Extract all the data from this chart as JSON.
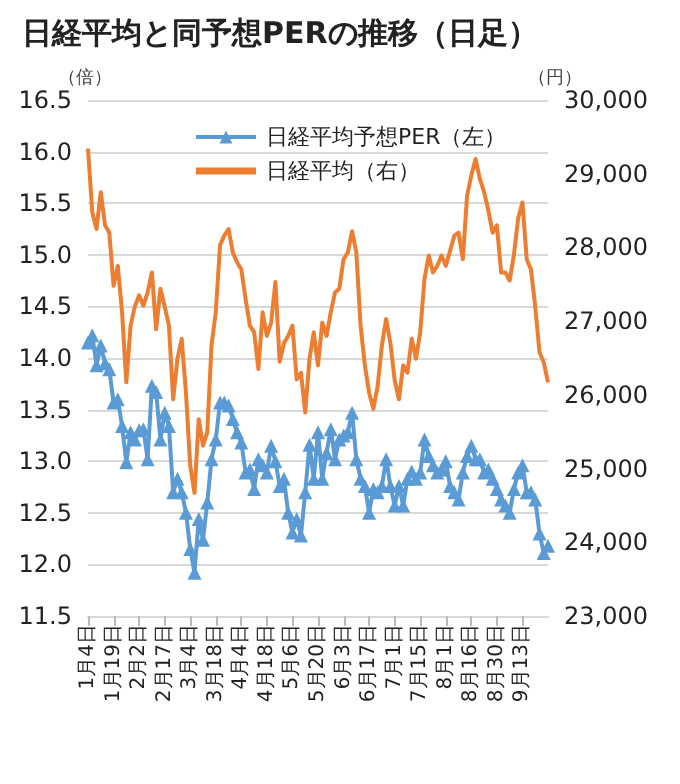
{
  "chart_data": {
    "type": "line",
    "title": "日経平均と同予想PERの推移（日足）",
    "ylabel": "（倍）",
    "y2label": "（円）",
    "categories": [
      "1月4日",
      null,
      null,
      null,
      null,
      null,
      "1月19日",
      null,
      null,
      null,
      null,
      null,
      "2月2日",
      null,
      null,
      null,
      null,
      null,
      "2月17日",
      null,
      null,
      null,
      null,
      null,
      "3月4日",
      null,
      null,
      null,
      null,
      null,
      "3月18日",
      null,
      null,
      null,
      null,
      null,
      "4月4日",
      null,
      null,
      null,
      null,
      null,
      "4月18日",
      null,
      null,
      null,
      null,
      null,
      "5月6日",
      null,
      null,
      null,
      null,
      null,
      "5月20日",
      null,
      null,
      null,
      null,
      null,
      "6月3日",
      null,
      null,
      null,
      null,
      null,
      "6月17日",
      null,
      null,
      null,
      null,
      null,
      "7月1日",
      null,
      null,
      null,
      null,
      null,
      "7月15日",
      null,
      null,
      null,
      null,
      null,
      "8月1日",
      null,
      null,
      null,
      null,
      null,
      "8月16日",
      null,
      null,
      null,
      null,
      null,
      "8月30日",
      null,
      null,
      null,
      null,
      null,
      "9月13日",
      null,
      null,
      null,
      null,
      null,
      null
    ],
    "series": [
      {
        "name": "日経平均予想PER（左）",
        "color": "#5b9bd5",
        "marker": "triangle",
        "values": [
          14.15,
          14.22,
          13.93,
          14.12,
          13.95,
          13.89,
          13.57,
          13.6,
          13.34,
          12.99,
          13.28,
          13.21,
          13.3,
          13.31,
          13.02,
          13.73,
          13.67,
          13.21,
          13.47,
          13.34,
          12.7,
          12.83,
          12.7,
          12.5,
          12.15,
          11.92,
          12.44,
          12.24,
          12.6,
          13.02,
          13.21,
          13.57,
          13.57,
          13.54,
          13.41,
          13.28,
          13.18,
          12.89,
          12.92,
          12.73,
          13.02,
          12.96,
          12.89,
          13.15,
          13.0,
          12.76,
          12.83,
          12.5,
          12.31,
          12.44,
          12.28,
          12.7,
          13.16,
          12.83,
          13.28,
          12.83,
          13.08,
          13.31,
          13.02,
          13.21,
          13.25,
          13.28,
          13.47,
          13.02,
          12.83,
          12.76,
          12.5,
          12.73,
          12.7,
          12.76,
          13.02,
          12.76,
          12.57,
          12.76,
          12.57,
          12.83,
          12.9,
          12.83,
          12.89,
          13.21,
          13.05,
          12.96,
          12.89,
          12.92,
          13.0,
          12.76,
          12.7,
          12.63,
          12.89,
          13.05,
          13.15,
          13.02,
          13.02,
          12.89,
          12.92,
          12.83,
          12.73,
          12.63,
          12.57,
          12.5,
          12.73,
          12.89,
          12.96,
          12.7,
          12.7,
          12.63,
          12.3,
          12.11,
          12.18
        ]
      },
      {
        "name": "日経平均（右）",
        "color": "#ed7d31",
        "marker": "none",
        "axis": "y2",
        "values": [
          29340,
          28480,
          28250,
          28750,
          28300,
          28200,
          27480,
          27750,
          27120,
          26170,
          26940,
          27200,
          27350,
          27210,
          27390,
          27660,
          26890,
          27440,
          27200,
          26940,
          25940,
          26490,
          26760,
          26030,
          25040,
          24670,
          25670,
          25310,
          25490,
          26670,
          27120,
          28030,
          28160,
          28250,
          27930,
          27800,
          27700,
          27300,
          26940,
          26850,
          26350,
          27120,
          26800,
          26980,
          27530,
          26450,
          26700,
          26800,
          26940,
          26210,
          26300,
          25760,
          26490,
          26850,
          26400,
          26980,
          26800,
          27120,
          27390,
          27440,
          27840,
          27930,
          28220,
          27930,
          26940,
          26400,
          26030,
          25810,
          26120,
          26670,
          27030,
          26700,
          26200,
          25940,
          26400,
          26300,
          26760,
          26490,
          26850,
          27570,
          27890,
          27660,
          27750,
          27890,
          27750,
          27950,
          28160,
          28200,
          27840,
          28700,
          28980,
          29200,
          28930,
          28750,
          28500,
          28200,
          28300,
          27660,
          27660,
          27550,
          27900,
          28400,
          28610,
          27840,
          27700,
          27200,
          26580,
          26440,
          26170
        ]
      }
    ],
    "ylim": [
      11.5,
      16.5
    ],
    "yticks": [
      11.5,
      {
        "value": 12,
        "label": "12.0"
      },
      12.5,
      {
        "value": 13,
        "label": "13.0"
      },
      13.5,
      {
        "value": 14,
        "label": "14.0"
      },
      14.5,
      {
        "value": 15,
        "label": "15.0"
      },
      15.5,
      {
        "value": 16,
        "label": "16.0"
      },
      16.5
    ],
    "y2lim": [
      23000,
      30000
    ],
    "y2ticks": [
      {
        "value": 23000,
        "label": "23,000"
      },
      {
        "value": 24000,
        "label": "24,000"
      },
      {
        "value": 25000,
        "label": "25,000"
      },
      {
        "value": 26000,
        "label": "26,000"
      },
      {
        "value": 27000,
        "label": "27,000"
      },
      {
        "value": 28000,
        "label": "28,000"
      },
      {
        "value": 29000,
        "label": "29,000"
      },
      {
        "value": 30000,
        "label": "30,000"
      }
    ],
    "grid": "y",
    "legend": "top"
  }
}
